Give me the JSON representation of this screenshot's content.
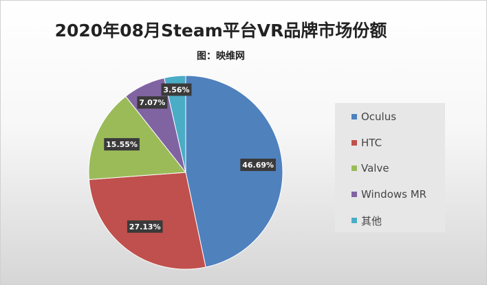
{
  "chart_data": {
    "type": "pie",
    "title": "2020年08月Steam平台VR品牌市场份额",
    "subtitle": "图：映维网",
    "categories": [
      "Oculus",
      "HTC",
      "Valve",
      "Windows MR",
      "其他"
    ],
    "values": [
      46.69,
      27.13,
      15.55,
      7.07,
      3.56
    ],
    "labels": [
      "46.69%",
      "27.13%",
      "15.55%",
      "7.07%",
      "3.56%"
    ],
    "colors": [
      "#4f81bd",
      "#c0504d",
      "#9bbb59",
      "#8064a2",
      "#4bacc6"
    ],
    "legend_position": "right",
    "start": "top, clockwise"
  }
}
